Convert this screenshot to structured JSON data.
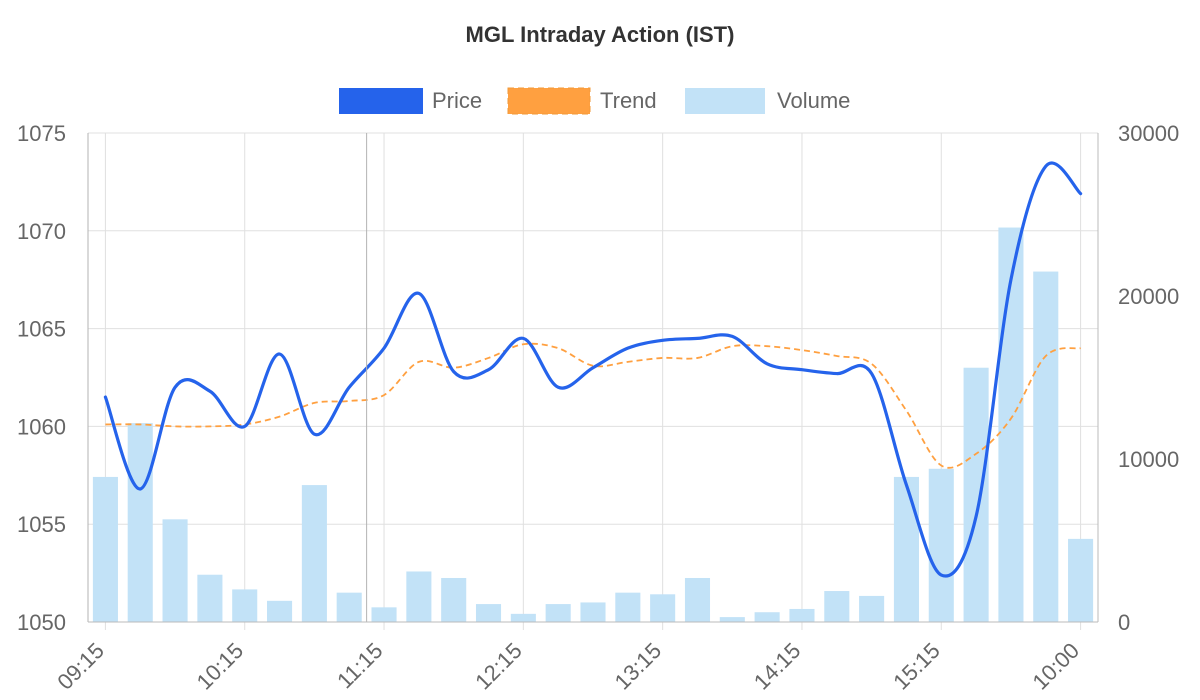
{
  "chart_data": {
    "type": "bar+line",
    "title": "MGL Intraday Action (IST)",
    "legend": {
      "position": "top",
      "entries": [
        {
          "label": "Price",
          "color": "#2563eb",
          "style": "solid"
        },
        {
          "label": "Trend",
          "color": "#ffa040",
          "style": "dashed"
        },
        {
          "label": "Volume",
          "color": "#c2e2f7",
          "style": "bar"
        }
      ]
    },
    "x_ticks": [
      "09:15",
      "10:15",
      "11:15",
      "12:15",
      "13:15",
      "14:15",
      "15:15",
      "10:00"
    ],
    "y_left": {
      "min": 1050,
      "max": 1075,
      "ticks": [
        1050,
        1055,
        1060,
        1065,
        1070,
        1075
      ]
    },
    "y_right": {
      "min": 0,
      "max": 30000,
      "ticks": [
        0,
        10000,
        20000,
        30000
      ]
    },
    "grid": true,
    "series": [
      {
        "name": "Price",
        "axis": "left",
        "values": [
          1061.5,
          1056.8,
          1062.0,
          1061.8,
          1060.0,
          1063.7,
          1059.6,
          1062.0,
          1064.0,
          1066.8,
          1062.8,
          1062.9,
          1064.5,
          1062.0,
          1063.0,
          1064.0,
          1064.4,
          1064.5,
          1064.6,
          1063.2,
          1062.9,
          1062.7,
          1062.7,
          1057.0,
          1052.4,
          1055.4,
          1067.5,
          1073.3,
          1071.9
        ]
      },
      {
        "name": "Trend",
        "axis": "left",
        "values": [
          1060.1,
          1060.1,
          1060.0,
          1060.0,
          1060.1,
          1060.5,
          1061.2,
          1061.3,
          1061.6,
          1063.3,
          1063.0,
          1063.5,
          1064.2,
          1064.0,
          1063.1,
          1063.3,
          1063.5,
          1063.5,
          1064.1,
          1064.1,
          1063.9,
          1063.6,
          1063.2,
          1060.8,
          1058.0,
          1058.6,
          1060.4,
          1063.6,
          1064.0
        ]
      },
      {
        "name": "Volume",
        "axis": "right",
        "values": [
          8900,
          12200,
          6300,
          2900,
          2000,
          1300,
          8400,
          1800,
          900,
          3100,
          2700,
          1100,
          500,
          1100,
          1200,
          1800,
          1700,
          2700,
          300,
          600,
          800,
          1900,
          1600,
          8900,
          9400,
          15600,
          24200,
          21500,
          5100
        ]
      }
    ]
  }
}
